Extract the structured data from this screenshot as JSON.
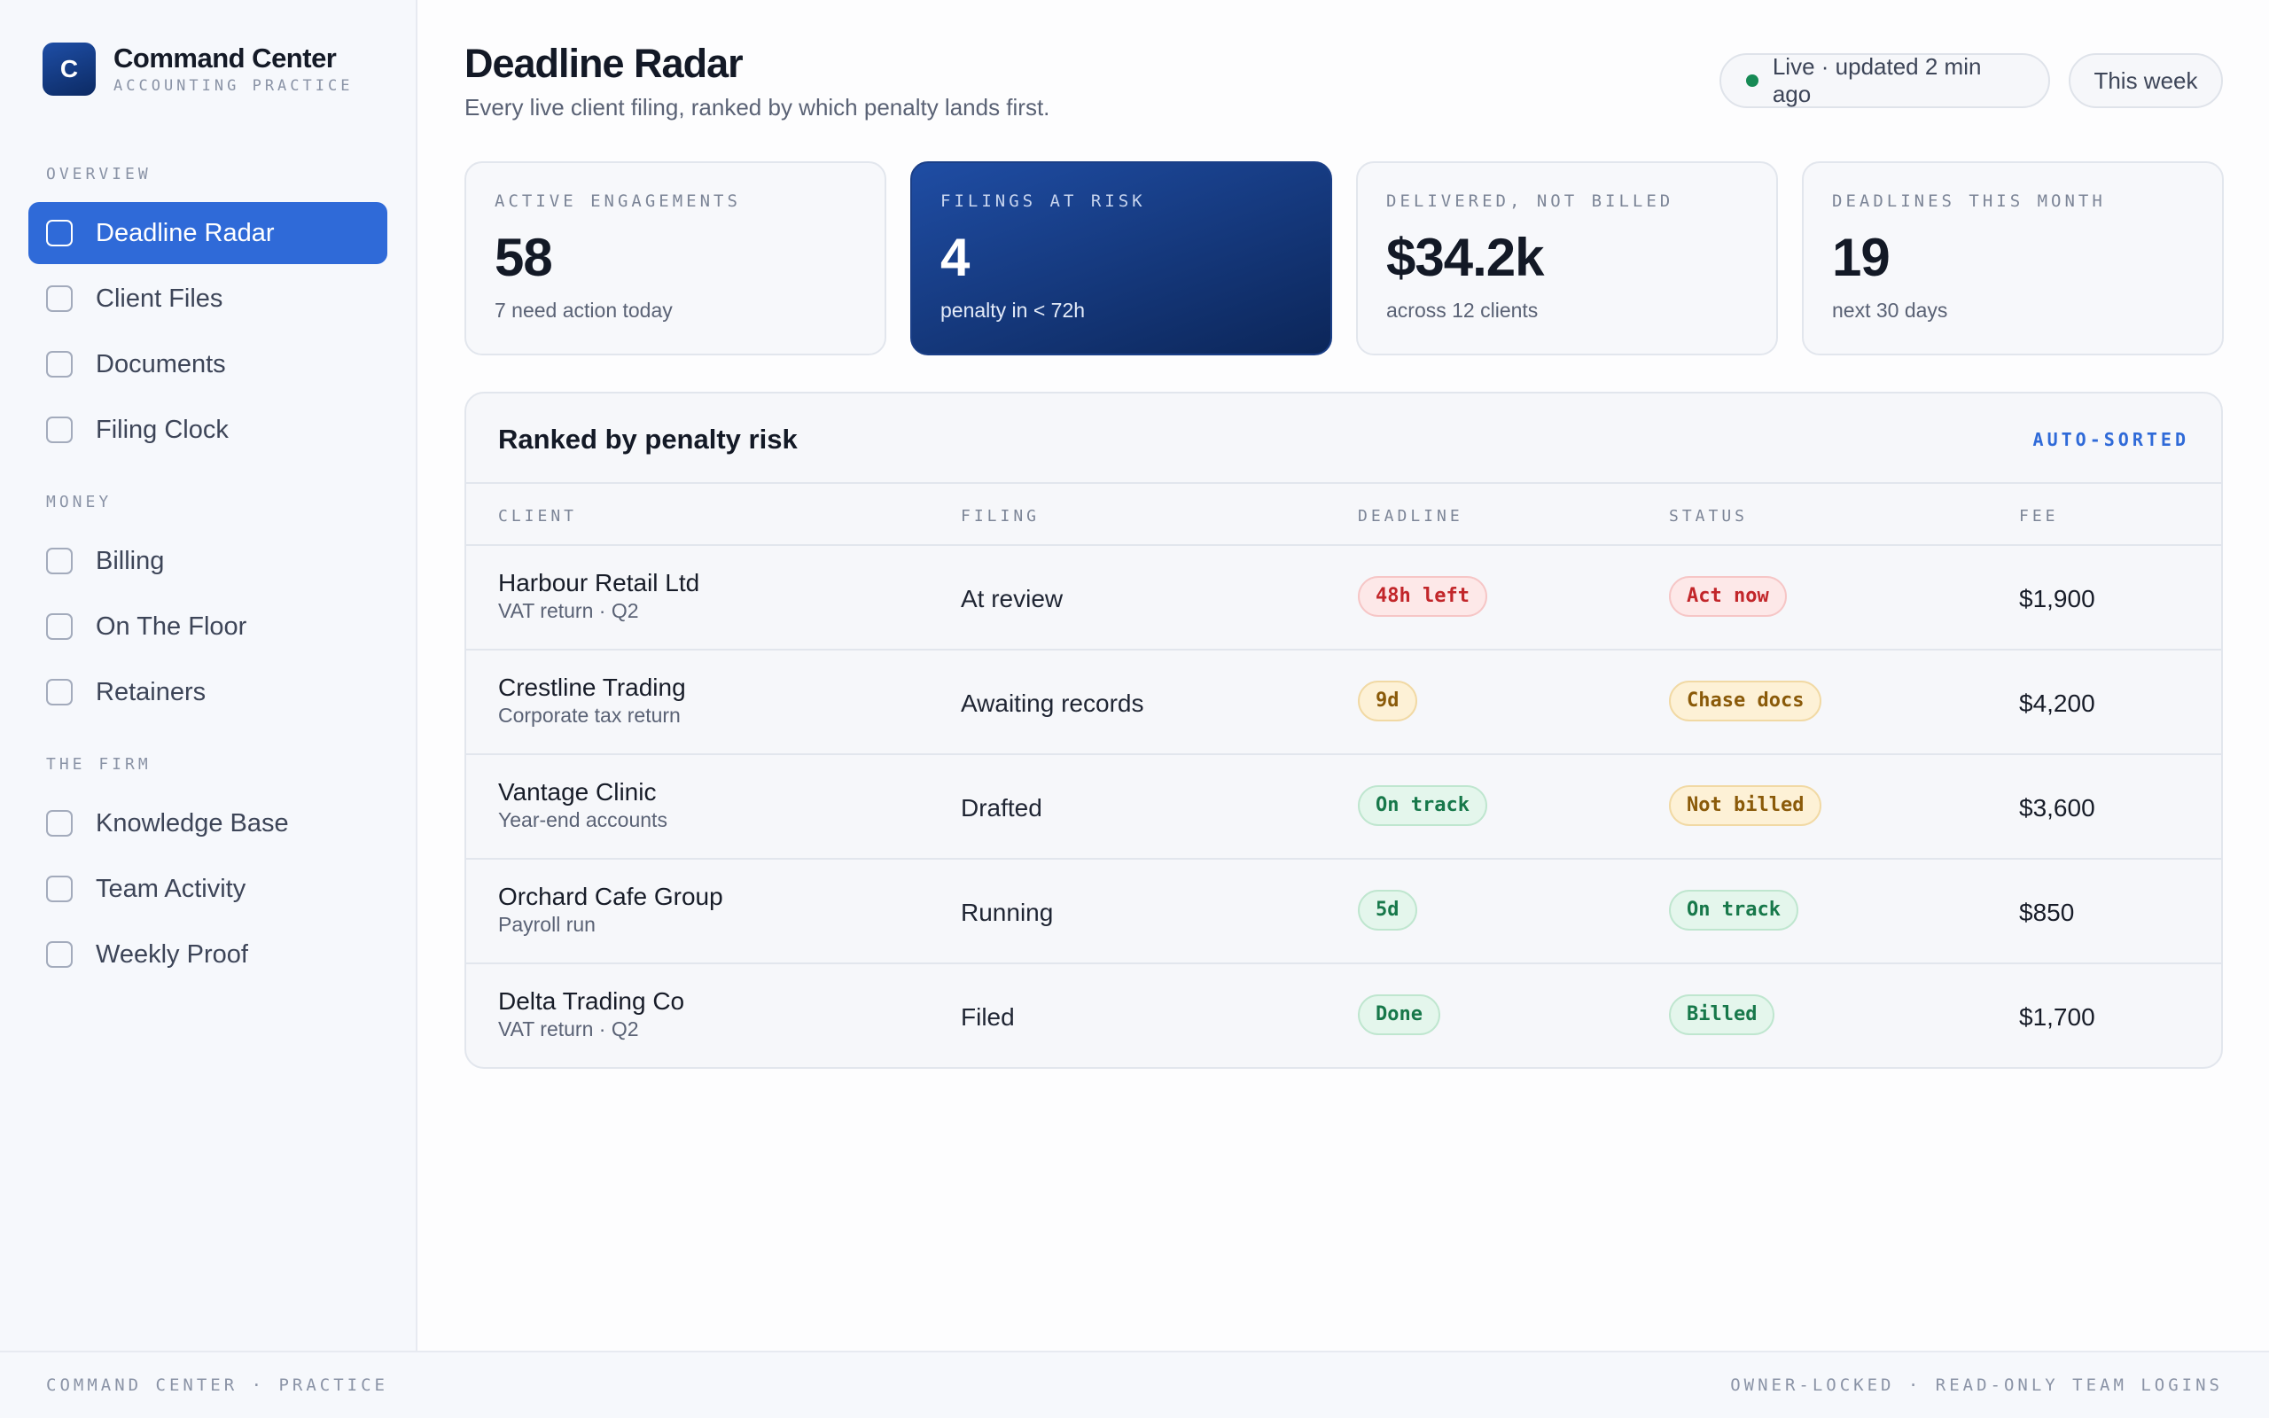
{
  "brand": {
    "logo_letter": "C",
    "title": "Command Center",
    "subtitle": "ACCOUNTING PRACTICE"
  },
  "sidebar": {
    "sections": [
      {
        "label": "OVERVIEW",
        "items": [
          "Deadline Radar",
          "Client Files",
          "Documents",
          "Filing Clock"
        ]
      },
      {
        "label": "MONEY",
        "items": [
          "Billing",
          "On The Floor",
          "Retainers"
        ]
      },
      {
        "label": "THE FIRM",
        "items": [
          "Knowledge Base",
          "Team Activity",
          "Weekly Proof"
        ]
      }
    ],
    "active_item": "Deadline Radar"
  },
  "header": {
    "title": "Deadline Radar",
    "subtitle": "Every live client filing, ranked by which penalty lands first.",
    "live_status": "Live · updated 2 min ago",
    "period": "This week"
  },
  "kpis": [
    {
      "label": "ACTIVE ENGAGEMENTS",
      "value": "58",
      "note": "7 need action today"
    },
    {
      "label": "FILINGS AT RISK",
      "value": "4",
      "note": "penalty in < 72h"
    },
    {
      "label": "DELIVERED, NOT BILLED",
      "value": "$34.2k",
      "note": "across 12 clients"
    },
    {
      "label": "DEADLINES THIS MONTH",
      "value": "19",
      "note": "next 30 days"
    }
  ],
  "table": {
    "title": "Ranked by penalty risk",
    "tag": "AUTO-SORTED",
    "columns": {
      "client": "CLIENT",
      "filing": "FILING",
      "deadline": "DEADLINE",
      "status": "STATUS",
      "fee": "FEE"
    },
    "rows": [
      {
        "client": "Harbour Retail Ltd",
        "sub": "VAT return · Q2",
        "filing": "At review",
        "deadline": "48h left",
        "status": "Act now",
        "fee": "$1,900"
      },
      {
        "client": "Crestline Trading",
        "sub": "Corporate tax return",
        "filing": "Awaiting records",
        "deadline": "9d",
        "status": "Chase docs",
        "fee": "$4,200"
      },
      {
        "client": "Vantage Clinic",
        "sub": "Year-end accounts",
        "filing": "Drafted",
        "deadline": "On track",
        "status": "Not billed",
        "fee": "$3,600"
      },
      {
        "client": "Orchard Cafe Group",
        "sub": "Payroll run",
        "filing": "Running",
        "deadline": "5d",
        "status": "On track",
        "fee": "$850"
      },
      {
        "client": "Delta Trading Co",
        "sub": "VAT return · Q2",
        "filing": "Filed",
        "deadline": "Done",
        "status": "Billed",
        "fee": "$1,700"
      }
    ]
  },
  "footer": {
    "left": "COMMAND CENTER · PRACTICE",
    "right": "OWNER-LOCKED · READ-ONLY TEAM LOGINS"
  },
  "colors": {
    "accent": "#2f6ad8",
    "danger": "#c2262a",
    "warning": "#8a5a09",
    "success": "#17784a"
  }
}
